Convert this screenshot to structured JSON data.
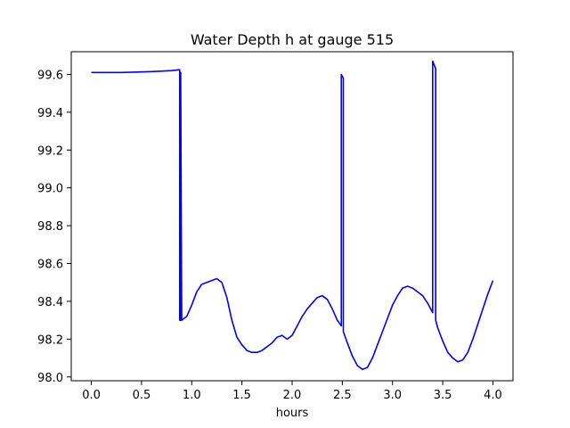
{
  "chart_data": {
    "type": "line",
    "title": "Water Depth h at gauge 515",
    "xlabel": "hours",
    "ylabel": "",
    "xlim": [
      -0.2,
      4.2
    ],
    "ylim": [
      97.98,
      99.72
    ],
    "xticks": [
      0.0,
      0.5,
      1.0,
      1.5,
      2.0,
      2.5,
      3.0,
      3.5,
      4.0
    ],
    "xtick_labels": [
      "0.0",
      "0.5",
      "1.0",
      "1.5",
      "2.0",
      "2.5",
      "3.0",
      "3.5",
      "4.0"
    ],
    "yticks": [
      98.0,
      98.2,
      98.4,
      98.6,
      98.8,
      99.0,
      99.2,
      99.4,
      99.6
    ],
    "ytick_labels": [
      "98.0",
      "98.2",
      "98.4",
      "98.6",
      "98.8",
      "99.0",
      "99.2",
      "99.4",
      "99.6"
    ],
    "grid": false,
    "series": [
      {
        "color": "#0000ff",
        "x": [
          0.0,
          0.3,
          0.6,
          0.8,
          0.88,
          0.88,
          0.89,
          0.89,
          0.9,
          0.95,
          1.0,
          1.05,
          1.1,
          1.15,
          1.2,
          1.25,
          1.3,
          1.35,
          1.4,
          1.45,
          1.5,
          1.55,
          1.6,
          1.65,
          1.7,
          1.75,
          1.8,
          1.85,
          1.9,
          1.95,
          2.0,
          2.05,
          2.1,
          2.15,
          2.2,
          2.25,
          2.3,
          2.35,
          2.4,
          2.45,
          2.49,
          2.49,
          2.51,
          2.51,
          2.55,
          2.6,
          2.65,
          2.7,
          2.75,
          2.8,
          2.85,
          2.9,
          2.95,
          3.0,
          3.05,
          3.1,
          3.15,
          3.2,
          3.25,
          3.3,
          3.35,
          3.4,
          3.4,
          3.43,
          3.43,
          3.45,
          3.5,
          3.55,
          3.6,
          3.65,
          3.7,
          3.75,
          3.8,
          3.85,
          3.9,
          3.95,
          4.0
        ],
        "y": [
          99.61,
          99.61,
          99.615,
          99.62,
          99.625,
          98.3,
          98.3,
          99.61,
          98.3,
          98.32,
          98.38,
          98.45,
          98.49,
          98.5,
          98.51,
          98.52,
          98.5,
          98.42,
          98.3,
          98.21,
          98.17,
          98.14,
          98.13,
          98.13,
          98.14,
          98.16,
          98.18,
          98.21,
          98.22,
          98.2,
          98.22,
          98.27,
          98.32,
          98.36,
          98.39,
          98.42,
          98.43,
          98.41,
          98.36,
          98.3,
          98.27,
          99.6,
          99.58,
          98.24,
          98.18,
          98.11,
          98.06,
          98.04,
          98.05,
          98.1,
          98.17,
          98.24,
          98.31,
          98.38,
          98.43,
          98.47,
          98.48,
          98.47,
          98.45,
          98.43,
          98.39,
          98.34,
          99.67,
          99.63,
          98.3,
          98.26,
          98.19,
          98.13,
          98.1,
          98.08,
          98.09,
          98.13,
          98.2,
          98.28,
          98.36,
          98.44,
          98.51
        ]
      }
    ]
  }
}
